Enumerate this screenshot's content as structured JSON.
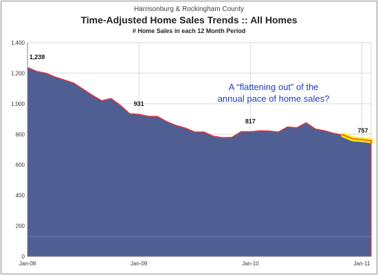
{
  "chart_data": {
    "type": "area",
    "title_top": "Harrisonburg & Rockingham County",
    "title": "Time-Adjusted Home Sales Trends  ::  All Homes",
    "subtitle": "# Home Sales in each 12 Month Period",
    "xlabel": "",
    "ylabel": "",
    "ylim": [
      0,
      1400
    ],
    "yticks": [
      "0",
      "200",
      "400",
      "600",
      "800",
      "1,000",
      "1,200",
      "1,400"
    ],
    "ytick_values": [
      0,
      200,
      400,
      600,
      800,
      1000,
      1200,
      1400
    ],
    "xticks": [
      {
        "index": 0,
        "label": "Jan-08"
      },
      {
        "index": 12,
        "label": "Jan-09"
      },
      {
        "index": 24,
        "label": "Jan-10"
      },
      {
        "index": 36,
        "label": "Jan-11"
      }
    ],
    "grid": true,
    "series": [
      {
        "values": [
          1238,
          1212,
          1200,
          1175,
          1155,
          1135,
          1095,
          1055,
          1020,
          1035,
          990,
          935,
          931,
          918,
          917,
          883,
          858,
          841,
          815,
          815,
          788,
          778,
          780,
          817,
          817,
          823,
          822,
          815,
          848,
          843,
          876,
          835,
          823,
          806,
          795,
          770,
          765,
          757
        ]
      }
    ],
    "data_labels": [
      {
        "index": 0,
        "text": "1,238"
      },
      {
        "index": 12,
        "text": "931"
      },
      {
        "index": 24,
        "text": "817"
      },
      {
        "index": 37,
        "text": "757"
      }
    ],
    "annotation": {
      "line1": "A “flattening out” of the",
      "line2": "annual pace of home sales?"
    },
    "colors": {
      "fill": "#4f5f93",
      "line": "#e8363a",
      "highlight": "#ffee00",
      "annotation": "#1f3fb5",
      "grid": "#d9d9d9"
    }
  }
}
